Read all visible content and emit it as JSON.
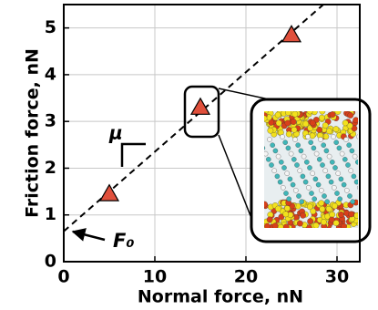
{
  "chart_data": {
    "type": "scatter",
    "x_label": "Normal force, nN",
    "y_label": "Friction force, nN",
    "x": [
      5,
      15,
      25
    ],
    "values": [
      1.45,
      3.3,
      4.85
    ],
    "color": "#e0503c",
    "fit_line": {
      "x": [
        0,
        28.5
      ],
      "y": [
        0.65,
        5.5
      ]
    },
    "xlim": [
      0,
      32.5
    ],
    "ylim": [
      0,
      5.5
    ],
    "xticks": [
      0,
      10,
      20,
      30
    ],
    "yticks": [
      0,
      1,
      2,
      3,
      4,
      5
    ],
    "grid": true,
    "annotations": {
      "slope": "μ",
      "intercept": "F₀"
    }
  }
}
